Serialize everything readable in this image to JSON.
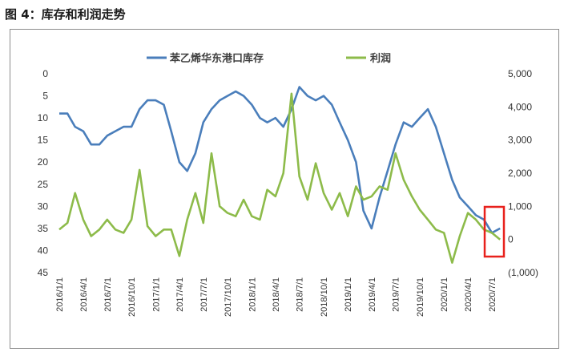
{
  "title": "图 4：库存和利润走势",
  "colors": {
    "inventory": "#4a7ebb",
    "profit": "#8dbb4a",
    "highlight": "#e8211c"
  },
  "chart_data": {
    "type": "line",
    "x_ticks": [
      "2016/1/1",
      "2016/4/1",
      "2016/7/1",
      "2016/10/1",
      "2017/1/1",
      "2017/4/1",
      "2017/7/1",
      "2017/10/1",
      "2018/1/1",
      "2018/4/1",
      "2018/7/1",
      "2018/10/1",
      "2019/1/1",
      "2019/4/1",
      "2019/7/1",
      "2019/10/1",
      "2020/1/1",
      "2020/4/1",
      "2020/7/1"
    ],
    "y_left": {
      "reversed": true,
      "range": [
        0,
        45
      ],
      "tick_labels": [
        "0",
        "5",
        "10",
        "15",
        "20",
        "25",
        "30",
        "35",
        "40",
        "45"
      ]
    },
    "y_right": {
      "range": [
        -1000,
        5000
      ],
      "tick_labels": [
        "5,000",
        "4,000",
        "3,000",
        "2,000",
        "1,000",
        "0",
        "(1,000)"
      ]
    },
    "legend": "top-center",
    "series": [
      {
        "name": "苯乙烯华东港口库存",
        "axis": "left",
        "x": [
          "2016/1/1",
          "2016/2/1",
          "2016/3/1",
          "2016/4/1",
          "2016/5/1",
          "2016/6/1",
          "2016/7/1",
          "2016/8/1",
          "2016/9/1",
          "2016/10/1",
          "2016/11/1",
          "2016/12/1",
          "2017/1/1",
          "2017/2/1",
          "2017/3/1",
          "2017/4/1",
          "2017/5/1",
          "2017/6/1",
          "2017/7/1",
          "2017/8/1",
          "2017/9/1",
          "2017/10/1",
          "2017/11/1",
          "2017/12/1",
          "2018/1/1",
          "2018/2/1",
          "2018/3/1",
          "2018/4/1",
          "2018/5/1",
          "2018/6/1",
          "2018/7/1",
          "2018/8/1",
          "2018/9/1",
          "2018/10/1",
          "2018/11/1",
          "2018/12/1",
          "2019/1/1",
          "2019/2/1",
          "2019/3/1",
          "2019/4/1",
          "2019/5/1",
          "2019/6/1",
          "2019/7/1",
          "2019/8/1",
          "2019/9/1",
          "2019/10/1",
          "2019/11/1",
          "2019/12/1",
          "2020/1/1",
          "2020/2/1",
          "2020/3/1",
          "2020/4/1",
          "2020/5/1",
          "2020/6/1",
          "2020/7/1",
          "2020/8/1"
        ],
        "values": [
          9,
          9,
          12,
          13,
          16,
          16,
          14,
          13,
          12,
          12,
          8,
          6,
          6,
          7,
          13,
          20,
          22,
          18,
          11,
          8,
          6,
          5,
          4,
          5,
          7,
          10,
          11,
          10,
          12,
          8,
          3,
          5,
          6,
          5,
          7,
          11,
          15,
          20,
          31,
          35,
          28,
          22,
          16,
          11,
          12,
          10,
          8,
          12,
          18,
          24,
          28,
          30,
          32,
          33,
          36,
          35
        ]
      },
      {
        "name": "利润",
        "axis": "right",
        "x": [
          "2016/1/1",
          "2016/2/1",
          "2016/3/1",
          "2016/4/1",
          "2016/5/1",
          "2016/6/1",
          "2016/7/1",
          "2016/8/1",
          "2016/9/1",
          "2016/10/1",
          "2016/11/1",
          "2016/12/1",
          "2017/1/1",
          "2017/2/1",
          "2017/3/1",
          "2017/4/1",
          "2017/5/1",
          "2017/6/1",
          "2017/7/1",
          "2017/8/1",
          "2017/9/1",
          "2017/10/1",
          "2017/11/1",
          "2017/12/1",
          "2018/1/1",
          "2018/2/1",
          "2018/3/1",
          "2018/4/1",
          "2018/5/1",
          "2018/6/1",
          "2018/7/1",
          "2018/8/1",
          "2018/9/1",
          "2018/10/1",
          "2018/11/1",
          "2018/12/1",
          "2019/1/1",
          "2019/2/1",
          "2019/3/1",
          "2019/4/1",
          "2019/5/1",
          "2019/6/1",
          "2019/7/1",
          "2019/8/1",
          "2019/9/1",
          "2019/10/1",
          "2019/11/1",
          "2019/12/1",
          "2020/1/1",
          "2020/2/1",
          "2020/3/1",
          "2020/4/1",
          "2020/5/1",
          "2020/6/1",
          "2020/7/1",
          "2020/8/1"
        ],
        "values": [
          300,
          500,
          1400,
          600,
          100,
          300,
          600,
          300,
          200,
          600,
          2100,
          400,
          100,
          300,
          300,
          -500,
          600,
          1400,
          500,
          2600,
          1000,
          800,
          700,
          1200,
          700,
          600,
          1500,
          1300,
          2000,
          4400,
          1900,
          1200,
          2300,
          1400,
          900,
          1400,
          700,
          1600,
          1200,
          1300,
          1600,
          1500,
          2600,
          1800,
          1300,
          900,
          600,
          300,
          200,
          -700,
          100,
          800,
          600,
          300,
          200,
          0
        ]
      }
    ]
  }
}
